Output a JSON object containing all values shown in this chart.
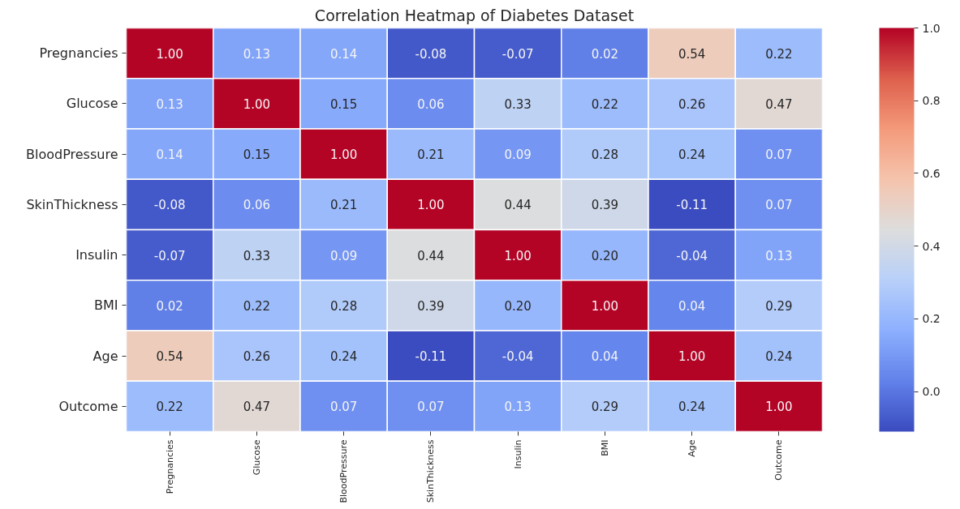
{
  "chart_data": {
    "type": "heatmap",
    "title": "Correlation Heatmap of Diabetes Dataset",
    "categories": [
      "Pregnancies",
      "Glucose",
      "BloodPressure",
      "SkinThickness",
      "Insulin",
      "BMI",
      "Age",
      "Outcome"
    ],
    "y_categories": [
      "Pregnancies",
      "Glucose",
      "BloodPressure",
      "SkinThickness",
      "Insulin",
      "BMI",
      "Age",
      "Outcome"
    ],
    "cells": [
      [
        1.0,
        0.13,
        0.14,
        -0.08,
        -0.07,
        0.02,
        0.54,
        0.22
      ],
      [
        0.13,
        1.0,
        0.15,
        0.06,
        0.33,
        0.22,
        0.26,
        0.47
      ],
      [
        0.14,
        0.15,
        1.0,
        0.21,
        0.09,
        0.28,
        0.24,
        0.07
      ],
      [
        -0.08,
        0.06,
        0.21,
        1.0,
        0.44,
        0.39,
        -0.11,
        0.07
      ],
      [
        -0.07,
        0.33,
        0.09,
        0.44,
        1.0,
        0.2,
        -0.04,
        0.13
      ],
      [
        0.02,
        0.22,
        0.28,
        0.39,
        0.2,
        1.0,
        0.04,
        0.29
      ],
      [
        0.54,
        0.26,
        0.24,
        -0.11,
        -0.04,
        0.04,
        1.0,
        0.24
      ],
      [
        0.22,
        0.47,
        0.07,
        0.07,
        0.13,
        0.29,
        0.24,
        1.0
      ]
    ],
    "cell_labels": [
      [
        "1.00",
        "0.13",
        "0.14",
        "-0.08",
        "-0.07",
        "0.02",
        "0.54",
        "0.22"
      ],
      [
        "0.13",
        "1.00",
        "0.15",
        "0.06",
        "0.33",
        "0.22",
        "0.26",
        "0.47"
      ],
      [
        "0.14",
        "0.15",
        "1.00",
        "0.21",
        "0.09",
        "0.28",
        "0.24",
        "0.07"
      ],
      [
        "-0.08",
        "0.06",
        "0.21",
        "1.00",
        "0.44",
        "0.39",
        "-0.11",
        "0.07"
      ],
      [
        "-0.07",
        "0.33",
        "0.09",
        "0.44",
        "1.00",
        "0.20",
        "-0.04",
        "0.13"
      ],
      [
        "0.02",
        "0.22",
        "0.28",
        "0.39",
        "0.20",
        "1.00",
        "0.04",
        "0.29"
      ],
      [
        "0.54",
        "0.26",
        "0.24",
        "-0.11",
        "-0.04",
        "0.04",
        "1.00",
        "0.24"
      ],
      [
        "0.22",
        "0.47",
        "0.07",
        "0.07",
        "0.13",
        "0.29",
        "0.24",
        "1.00"
      ]
    ],
    "clim": [
      -0.11,
      1.0
    ],
    "cticks": [
      {
        "value": 0,
        "label": "0.0"
      },
      0.2,
      0.4,
      0.6,
      0.8,
      {
        "value": 1,
        "label": "1.0"
      }
    ]
  }
}
